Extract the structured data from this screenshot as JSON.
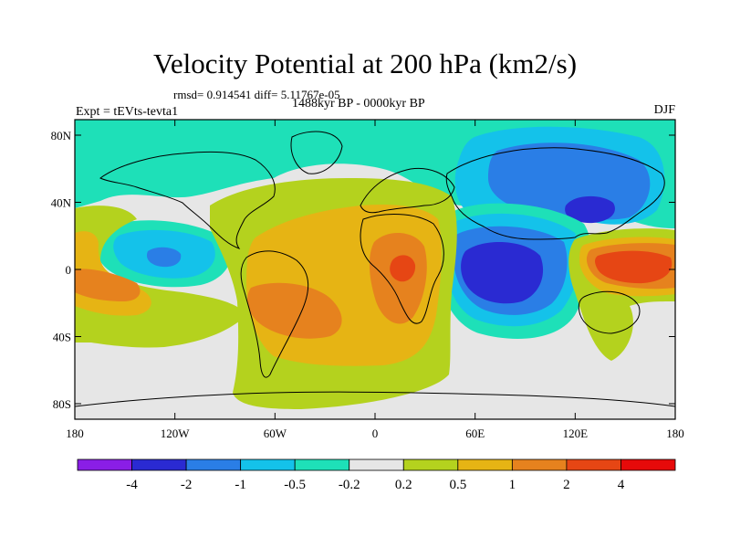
{
  "title": "Velocity Potential at 200 hPa (km2/s)",
  "stats_line": "rmsd= 0.914541 diff= 5.11767e-05",
  "experiment": "Expt = tEVts-tevta1",
  "period": "1488kyr BP - 0000kyr BP",
  "season": "DJF",
  "x_ticks": [
    "180",
    "120W",
    "60W",
    "0",
    "60E",
    "120E",
    "180"
  ],
  "y_ticks": [
    "80N",
    "40N",
    "0",
    "40S",
    "80S"
  ],
  "colorbar": {
    "labels": [
      "-4",
      "-2",
      "-1",
      "-0.5",
      "-0.2",
      "0.2",
      "0.5",
      "1",
      "2",
      "4"
    ],
    "colors": [
      "#8a1ee6",
      "#2a2ad2",
      "#2a7ee6",
      "#14c2ea",
      "#1ee0b8",
      "#e6e6e6",
      "#b4d21e",
      "#e6b414",
      "#e6821e",
      "#e64614",
      "#e60a0a"
    ]
  },
  "palette": {
    "ocean_bg": "#e6e6e6",
    "neg_4": "#2a2ad2",
    "neg_2": "#2a7ee6",
    "neg_1": "#14c2ea",
    "neg_05": "#1ee0b8",
    "pos_02": "#b4d21e",
    "pos_05": "#e6b414",
    "pos_1": "#e6821e",
    "pos_2": "#e64614"
  }
}
